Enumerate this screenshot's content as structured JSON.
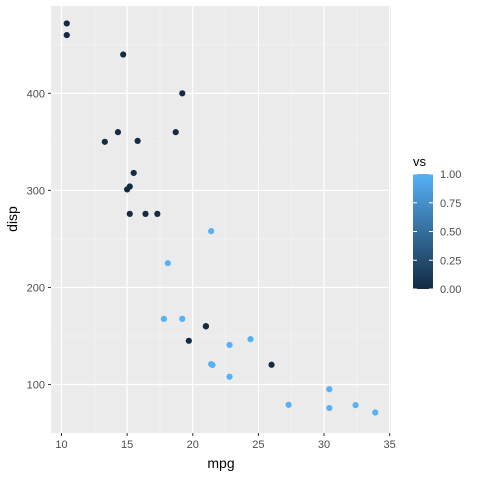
{
  "chart_data": {
    "type": "scatter",
    "xlabel": "mpg",
    "ylabel": "disp",
    "xlim": [
      9.2,
      35.1
    ],
    "ylim": [
      50.0,
      490.0
    ],
    "x_ticks": [
      "10",
      "15",
      "20",
      "25",
      "30",
      "35"
    ],
    "y_ticks": [
      "100",
      "200",
      "300",
      "400"
    ],
    "grid": true,
    "legend": {
      "title": "vs",
      "position": "right",
      "labels": [
        "1.00",
        "0.75",
        "0.50",
        "0.25",
        "0.00"
      ],
      "low_color": "#132B43",
      "high_color": "#56B1F7"
    },
    "points": [
      {
        "x": 21.0,
        "y": 160.0,
        "vs": 0
      },
      {
        "x": 21.0,
        "y": 160.0,
        "vs": 0
      },
      {
        "x": 22.8,
        "y": 108.0,
        "vs": 1
      },
      {
        "x": 21.4,
        "y": 258.0,
        "vs": 1
      },
      {
        "x": 18.7,
        "y": 360.0,
        "vs": 0
      },
      {
        "x": 18.1,
        "y": 225.0,
        "vs": 1
      },
      {
        "x": 14.3,
        "y": 360.0,
        "vs": 0
      },
      {
        "x": 24.4,
        "y": 146.7,
        "vs": 1
      },
      {
        "x": 22.8,
        "y": 140.8,
        "vs": 1
      },
      {
        "x": 19.2,
        "y": 167.6,
        "vs": 1
      },
      {
        "x": 17.8,
        "y": 167.6,
        "vs": 1
      },
      {
        "x": 16.4,
        "y": 275.8,
        "vs": 0
      },
      {
        "x": 17.3,
        "y": 275.8,
        "vs": 0
      },
      {
        "x": 15.2,
        "y": 275.8,
        "vs": 0
      },
      {
        "x": 10.4,
        "y": 472.0,
        "vs": 0
      },
      {
        "x": 10.4,
        "y": 460.0,
        "vs": 0
      },
      {
        "x": 14.7,
        "y": 440.0,
        "vs": 0
      },
      {
        "x": 32.4,
        "y": 78.7,
        "vs": 1
      },
      {
        "x": 30.4,
        "y": 75.7,
        "vs": 1
      },
      {
        "x": 33.9,
        "y": 71.1,
        "vs": 1
      },
      {
        "x": 21.5,
        "y": 120.1,
        "vs": 1
      },
      {
        "x": 15.5,
        "y": 318.0,
        "vs": 0
      },
      {
        "x": 15.2,
        "y": 304.0,
        "vs": 0
      },
      {
        "x": 13.3,
        "y": 350.0,
        "vs": 0
      },
      {
        "x": 19.2,
        "y": 400.0,
        "vs": 0
      },
      {
        "x": 27.3,
        "y": 79.0,
        "vs": 1
      },
      {
        "x": 26.0,
        "y": 120.3,
        "vs": 0
      },
      {
        "x": 30.4,
        "y": 95.1,
        "vs": 1
      },
      {
        "x": 15.8,
        "y": 351.0,
        "vs": 0
      },
      {
        "x": 19.7,
        "y": 145.0,
        "vs": 0
      },
      {
        "x": 15.0,
        "y": 301.0,
        "vs": 0
      },
      {
        "x": 21.4,
        "y": 121.0,
        "vs": 1
      }
    ]
  }
}
